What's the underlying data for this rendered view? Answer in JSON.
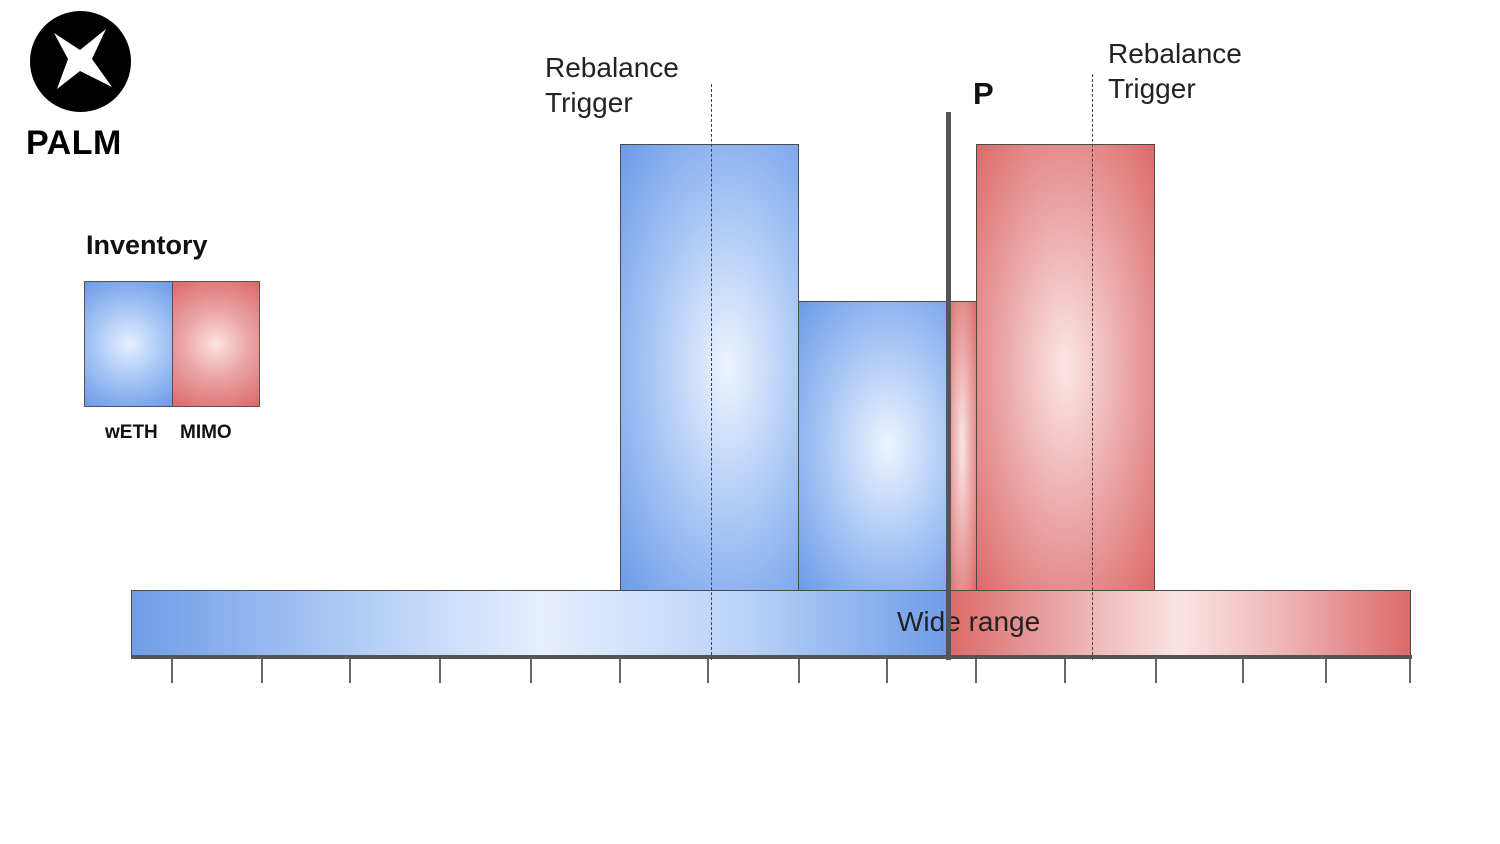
{
  "logo": {
    "text": "PALM",
    "icon": "star-cross-icon"
  },
  "legend": {
    "title": "Inventory",
    "items": [
      {
        "label": "wETH",
        "color": "#6a9ae8"
      },
      {
        "label": "MIMO",
        "color": "#dc6868"
      }
    ]
  },
  "price_marker": {
    "label": "P"
  },
  "triggers": [
    {
      "line1": "Rebalance",
      "line2": "Trigger"
    },
    {
      "line1": "Rebalance",
      "line2": "Trigger"
    }
  ],
  "wide_range": {
    "label": "Wide range"
  },
  "colors": {
    "weth": "#6b9be8",
    "mimo": "#dc6a6a",
    "axis": "#555555"
  }
}
